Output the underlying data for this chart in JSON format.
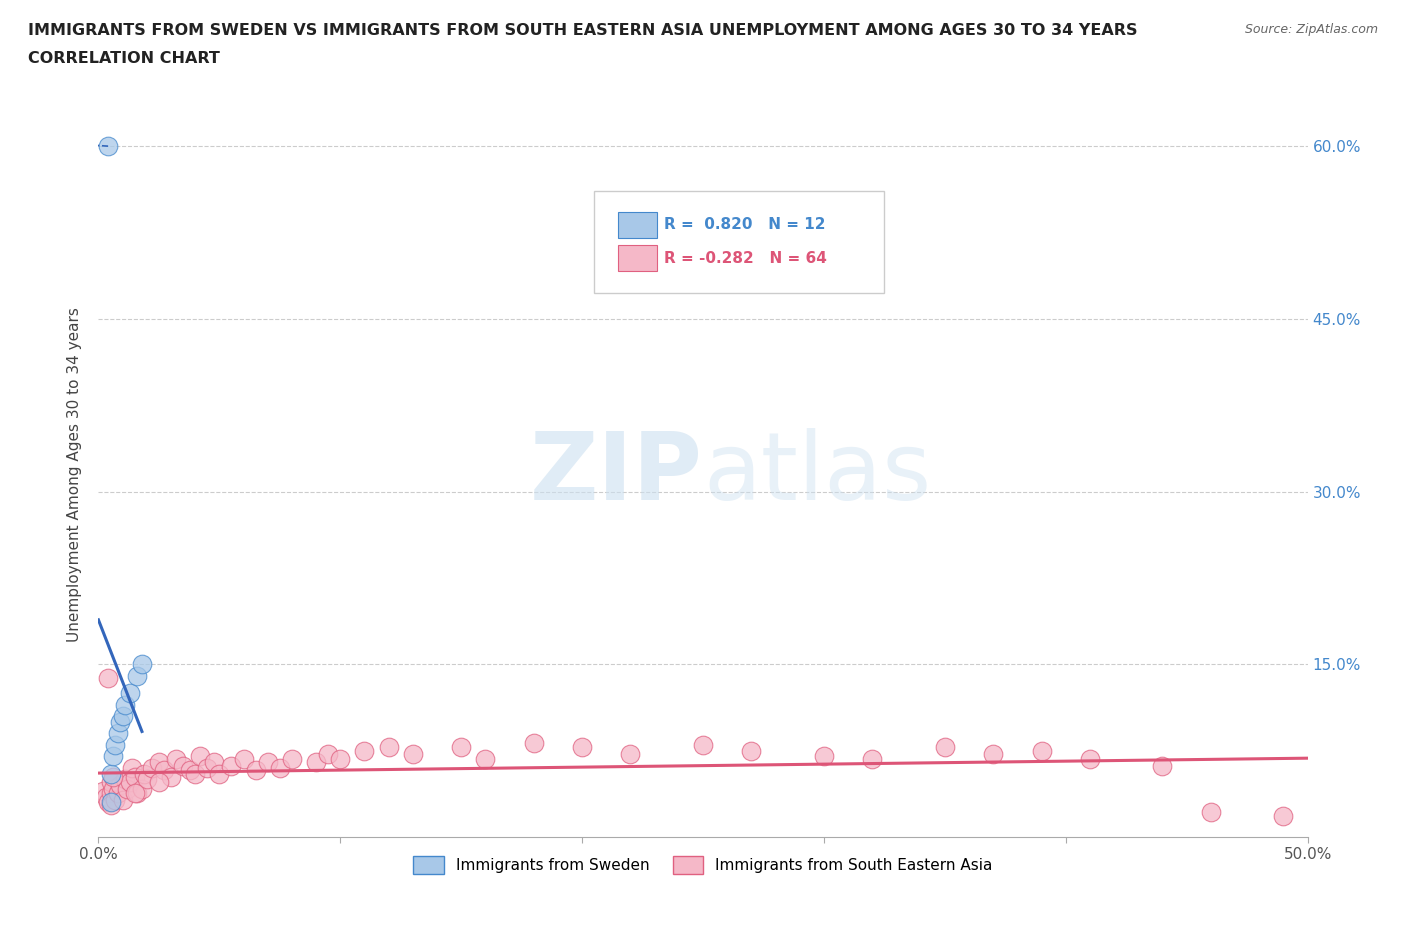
{
  "title_line1": "IMMIGRANTS FROM SWEDEN VS IMMIGRANTS FROM SOUTH EASTERN ASIA UNEMPLOYMENT AMONG AGES 30 TO 34 YEARS",
  "title_line2": "CORRELATION CHART",
  "source": "Source: ZipAtlas.com",
  "ylabel": "Unemployment Among Ages 30 to 34 years",
  "xlim": [
    0,
    0.5
  ],
  "ylim": [
    0,
    0.63
  ],
  "xticks": [
    0.0,
    0.1,
    0.2,
    0.3,
    0.4,
    0.5
  ],
  "yticks": [
    0.0,
    0.15,
    0.3,
    0.45,
    0.6
  ],
  "ytick_labels": [
    "",
    "15.0%",
    "30.0%",
    "45.0%",
    "60.0%"
  ],
  "xtick_labels": [
    "0.0%",
    "",
    "",
    "",
    "",
    "50.0%"
  ],
  "sweden_color": "#a8c8e8",
  "sea_color": "#f5b8c8",
  "sweden_edge_color": "#4488cc",
  "sea_edge_color": "#e06080",
  "sweden_line_color": "#3366bb",
  "sea_line_color": "#dd5577",
  "sweden_R": 0.82,
  "sweden_N": 12,
  "sea_R": -0.282,
  "sea_N": 64,
  "sweden_scatter_x": [
    0.004,
    0.005,
    0.005,
    0.006,
    0.007,
    0.008,
    0.009,
    0.01,
    0.011,
    0.013,
    0.016,
    0.018
  ],
  "sweden_scatter_y": [
    0.6,
    0.03,
    0.055,
    0.07,
    0.08,
    0.09,
    0.1,
    0.105,
    0.115,
    0.125,
    0.14,
    0.15
  ],
  "sea_scatter_x": [
    0.002,
    0.003,
    0.004,
    0.005,
    0.005,
    0.005,
    0.006,
    0.007,
    0.008,
    0.009,
    0.01,
    0.011,
    0.012,
    0.013,
    0.014,
    0.015,
    0.016,
    0.018,
    0.019,
    0.02,
    0.022,
    0.025,
    0.027,
    0.03,
    0.032,
    0.035,
    0.038,
    0.04,
    0.042,
    0.045,
    0.048,
    0.05,
    0.055,
    0.06,
    0.065,
    0.07,
    0.075,
    0.08,
    0.09,
    0.095,
    0.1,
    0.11,
    0.12,
    0.13,
    0.15,
    0.16,
    0.18,
    0.2,
    0.22,
    0.25,
    0.27,
    0.3,
    0.32,
    0.35,
    0.37,
    0.39,
    0.41,
    0.44,
    0.46,
    0.49,
    0.004,
    0.006,
    0.015,
    0.025
  ],
  "sea_scatter_y": [
    0.04,
    0.035,
    0.03,
    0.038,
    0.028,
    0.048,
    0.042,
    0.032,
    0.038,
    0.045,
    0.032,
    0.05,
    0.042,
    0.048,
    0.06,
    0.052,
    0.038,
    0.042,
    0.055,
    0.05,
    0.06,
    0.065,
    0.058,
    0.052,
    0.068,
    0.062,
    0.058,
    0.055,
    0.07,
    0.06,
    0.065,
    0.055,
    0.062,
    0.068,
    0.058,
    0.065,
    0.06,
    0.068,
    0.065,
    0.072,
    0.068,
    0.075,
    0.078,
    0.072,
    0.078,
    0.068,
    0.082,
    0.078,
    0.072,
    0.08,
    0.075,
    0.07,
    0.068,
    0.078,
    0.072,
    0.075,
    0.068,
    0.062,
    0.022,
    0.018,
    0.138,
    0.052,
    0.038,
    0.048
  ],
  "background_color": "#ffffff",
  "grid_color": "#cccccc",
  "watermark_zip": "ZIP",
  "watermark_atlas": "atlas",
  "legend_sweden_color": "#4488cc",
  "legend_sea_color": "#dd5577"
}
